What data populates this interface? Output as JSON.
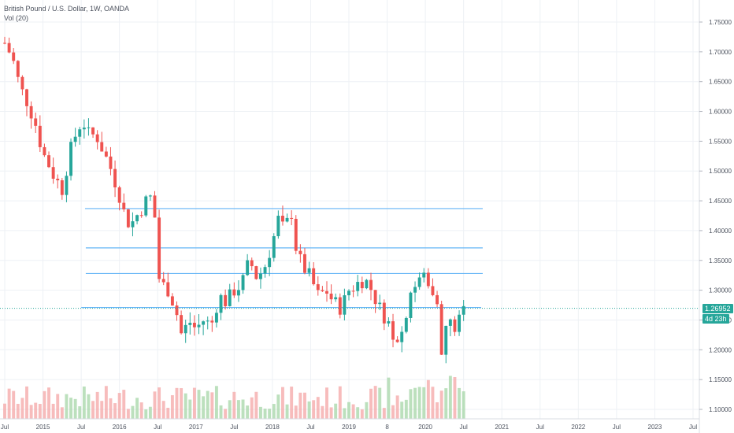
{
  "legend": {
    "title": "British Pound / U.S. Dollar, 1W, OANDA",
    "volume": "Vol (20)"
  },
  "badges": {
    "last_price": "1.26952",
    "countdown": "4d 23h"
  },
  "colors": {
    "up": "#26a69a",
    "down": "#ef5350",
    "vol_up": "#a5d6a7",
    "vol_down": "#f4a6a6",
    "hline": "#64b5f6",
    "grid": "#eef1f5",
    "axis_text": "#4c525e",
    "last_price_line": "#26a69a"
  },
  "chart_data": {
    "type": "candlestick",
    "symbol": "British Pound / U.S. Dollar, 1W, OANDA",
    "x_ticks": [
      "Jul",
      "2015",
      "Jul",
      "2016",
      "Jul",
      "2017",
      "Jul",
      "2018",
      "Jul",
      "2019",
      "8",
      "2020",
      "Jul",
      "2021",
      "Jul",
      "2022",
      "Jul",
      "2023",
      "Jul"
    ],
    "y_ticks": [
      "1.75000",
      "1.70000",
      "1.65000",
      "1.60000",
      "1.55000",
      "1.50000",
      "1.45000",
      "1.40000",
      "1.35000",
      "1.30000",
      "1.25000",
      "1.20000",
      "1.15000",
      "1.10000"
    ],
    "ylim": [
      1.09,
      1.8
    ],
    "horizontal_levels": [
      {
        "value": 1.437,
        "start": 2015.55,
        "end": 2020.75
      },
      {
        "value": 1.371,
        "start": 2015.56,
        "end": 2020.75
      },
      {
        "value": 1.328,
        "start": 2015.56,
        "end": 2020.75
      },
      {
        "value": 1.271,
        "start": 2015.5,
        "end": 2020.73
      }
    ],
    "last_price": 1.26952,
    "price_path": [
      [
        2014.5,
        1.715
      ],
      [
        2014.6,
        1.69
      ],
      [
        2014.7,
        1.64
      ],
      [
        2014.8,
        1.615
      ],
      [
        2014.9,
        1.58
      ],
      [
        2015.0,
        1.53
      ],
      [
        2015.08,
        1.51
      ],
      [
        2015.15,
        1.49
      ],
      [
        2015.25,
        1.47
      ],
      [
        2015.35,
        1.53
      ],
      [
        2015.45,
        1.57
      ],
      [
        2015.52,
        1.585
      ],
      [
        2015.6,
        1.56
      ],
      [
        2015.7,
        1.56
      ],
      [
        2015.8,
        1.53
      ],
      [
        2015.9,
        1.5
      ],
      [
        2016.0,
        1.46
      ],
      [
        2016.08,
        1.42
      ],
      [
        2016.15,
        1.41
      ],
      [
        2016.25,
        1.43
      ],
      [
        2016.35,
        1.45
      ],
      [
        2016.45,
        1.46
      ],
      [
        2016.49,
        1.33
      ],
      [
        2016.55,
        1.31
      ],
      [
        2016.65,
        1.3
      ],
      [
        2016.75,
        1.26
      ],
      [
        2016.82,
        1.22
      ],
      [
        2016.9,
        1.25
      ],
      [
        2017.0,
        1.235
      ],
      [
        2017.1,
        1.25
      ],
      [
        2017.2,
        1.24
      ],
      [
        2017.3,
        1.29
      ],
      [
        2017.4,
        1.28
      ],
      [
        2017.5,
        1.3
      ],
      [
        2017.6,
        1.31
      ],
      [
        2017.7,
        1.35
      ],
      [
        2017.8,
        1.32
      ],
      [
        2017.9,
        1.34
      ],
      [
        2018.0,
        1.38
      ],
      [
        2018.08,
        1.42
      ],
      [
        2018.15,
        1.4
      ],
      [
        2018.25,
        1.43
      ],
      [
        2018.32,
        1.36
      ],
      [
        2018.4,
        1.34
      ],
      [
        2018.5,
        1.32
      ],
      [
        2018.6,
        1.29
      ],
      [
        2018.7,
        1.3
      ],
      [
        2018.8,
        1.28
      ],
      [
        2018.9,
        1.27
      ],
      [
        2019.0,
        1.3
      ],
      [
        2019.1,
        1.31
      ],
      [
        2019.2,
        1.32
      ],
      [
        2019.3,
        1.3
      ],
      [
        2019.4,
        1.27
      ],
      [
        2019.5,
        1.25
      ],
      [
        2019.6,
        1.22
      ],
      [
        2019.7,
        1.23
      ],
      [
        2019.8,
        1.3
      ],
      [
        2019.9,
        1.31
      ],
      [
        2020.0,
        1.33
      ],
      [
        2020.05,
        1.3
      ],
      [
        2020.12,
        1.3
      ],
      [
        2020.18,
        1.28
      ],
      [
        2020.22,
        1.16
      ],
      [
        2020.27,
        1.24
      ],
      [
        2020.35,
        1.245
      ],
      [
        2020.42,
        1.23
      ],
      [
        2020.45,
        1.255
      ],
      [
        2020.5,
        1.265
      ]
    ],
    "volume_ylim": [
      0,
      100
    ]
  }
}
